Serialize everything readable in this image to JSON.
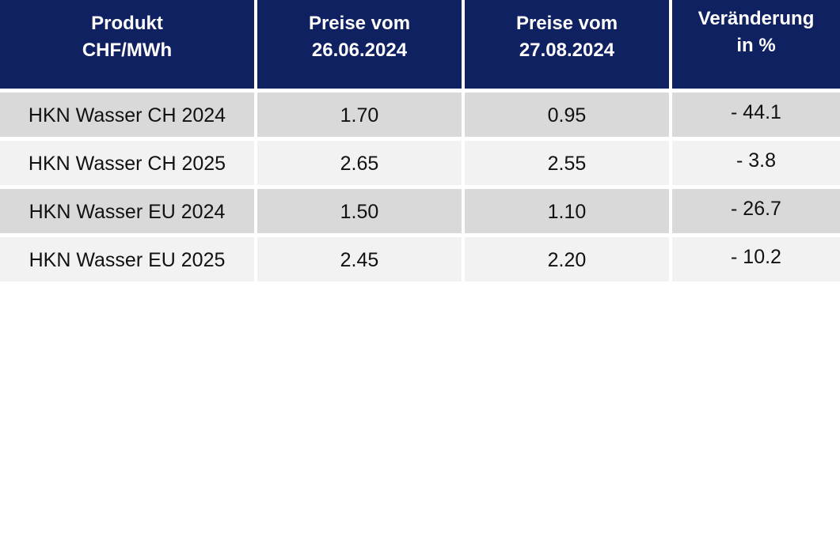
{
  "table": {
    "headers": [
      "Produkt\nCHF/MWh",
      "Preise vom\n26.06.2024",
      "Preise vom\n27.08.2024",
      "Veränderung\nin %"
    ],
    "rows": [
      {
        "product": "HKN Wasser CH 2024",
        "price_old": "1.70",
        "price_new": "0.95",
        "change": "- 44.1"
      },
      {
        "product": "HKN Wasser CH 2025",
        "price_old": "2.65",
        "price_new": "2.55",
        "change": "- 3.8"
      },
      {
        "product": "HKN Wasser EU 2024",
        "price_old": "1.50",
        "price_new": "1.10",
        "change": "- 26.7"
      },
      {
        "product": "HKN Wasser EU 2025",
        "price_old": "2.45",
        "price_new": "2.20",
        "change": "- 10.2"
      }
    ],
    "colors": {
      "header_bg": "#0f2160",
      "header_text": "#ffffff",
      "row_dark": "#d9d9d9",
      "row_light": "#f2f2f2"
    }
  }
}
